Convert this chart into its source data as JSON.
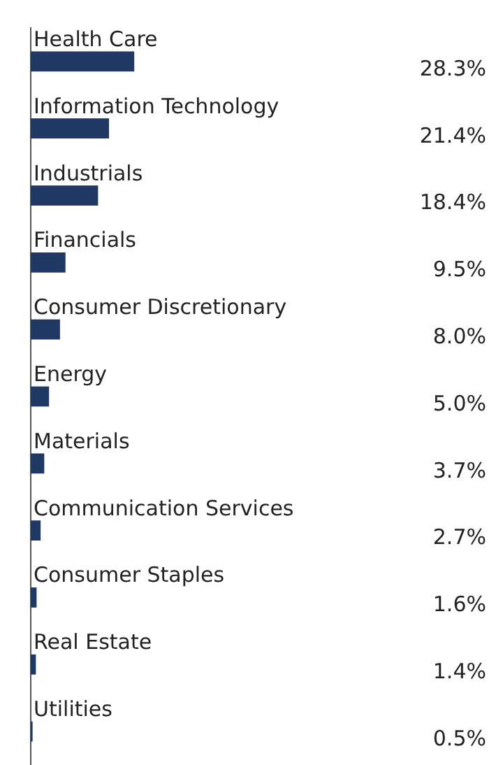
{
  "chart_data": {
    "type": "bar",
    "orientation": "horizontal",
    "value_labels": [
      "28.3%",
      "21.4%",
      "18.4%",
      "9.5%",
      "8.0%",
      "5.0%",
      "3.7%",
      "2.7%",
      "1.6%",
      "1.4%",
      "0.5%"
    ],
    "categories": [
      "Health Care",
      "Information Technology",
      "Industrials",
      "Financials",
      "Consumer Discretionary",
      "Energy",
      "Materials",
      "Communication Services",
      "Consumer Staples",
      "Real Estate",
      "Utilities"
    ],
    "values": [
      28.3,
      21.4,
      18.4,
      9.5,
      8.0,
      5.0,
      3.7,
      2.7,
      1.6,
      1.4,
      0.5
    ],
    "color": "#1f3864"
  }
}
